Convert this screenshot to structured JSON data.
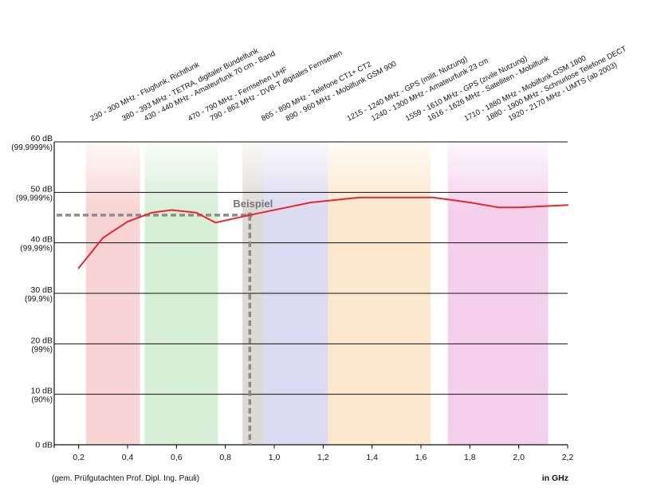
{
  "chart_data": {
    "type": "line",
    "x_unit_label": "in GHz",
    "source_note": "(gem. Prüfgutachten Prof. Dipl. Ing. Pauli)",
    "xlim": [
      0.1,
      2.2
    ],
    "ylim": [
      0,
      60
    ],
    "x_ticks": [
      "0,2",
      "0,4",
      "0,6",
      "0,8",
      "1,0",
      "1,2",
      "1,4",
      "1,6",
      "1,8",
      "2,0",
      "2,2"
    ],
    "x_tick_values": [
      0.2,
      0.4,
      0.6,
      0.8,
      1.0,
      1.2,
      1.4,
      1.6,
      1.8,
      2.0,
      2.2
    ],
    "y_ticks": [
      {
        "value": 0,
        "db": "0 dB",
        "pct": ""
      },
      {
        "value": 10,
        "db": "10 dB",
        "pct": "(90%)"
      },
      {
        "value": 20,
        "db": "20 dB",
        "pct": "(99%)"
      },
      {
        "value": 30,
        "db": "30 dB",
        "pct": "(99,9%)"
      },
      {
        "value": 40,
        "db": "40 dB",
        "pct": "(99,99%)"
      },
      {
        "value": 50,
        "db": "50 dB",
        "pct": "(99,999%)"
      },
      {
        "value": 60,
        "db": "60 dB",
        "pct": "(99,9999%)"
      }
    ],
    "series": [
      {
        "color": "#e8262b",
        "x": [
          0.2,
          0.3,
          0.4,
          0.5,
          0.58,
          0.68,
          0.76,
          0.9,
          1.15,
          1.35,
          1.55,
          1.65,
          1.8,
          1.92,
          2.0,
          2.2
        ],
        "y": [
          35,
          41,
          44.2,
          46,
          46.5,
          46,
          44,
          45.5,
          48,
          49,
          49,
          49,
          48,
          47,
          47,
          47.5
        ]
      }
    ],
    "bands": [
      {
        "from": 0.23,
        "to": 0.45,
        "color": "#f9d4d4"
      },
      {
        "from": 0.47,
        "to": 0.77,
        "color": "#d7eed7"
      },
      {
        "from": 0.87,
        "to": 0.96,
        "color": "#dcdad6"
      },
      {
        "from": 0.96,
        "to": 1.22,
        "color": "#dcdaf0"
      },
      {
        "from": 1.22,
        "to": 1.64,
        "color": "#fbe8cd"
      },
      {
        "from": 1.71,
        "to": 2.12,
        "color": "#f5d0ec"
      }
    ],
    "example": {
      "label": "Beispiel",
      "x": 0.9,
      "y": 45.5,
      "color": "#8c8c8c"
    },
    "band_labels": [
      {
        "text": "230 - 300 MHz - Flugfunk, Richtfunk",
        "at": 0.26
      },
      {
        "text": "380 - 393 MHz - TETRA, digitaler Bündelfunk",
        "at": 0.39
      },
      {
        "text": "430 - 440 MHz - Amateurfunk 70 cm - Band",
        "at": 0.48
      },
      {
        "text": "470 - 790 MHz - Fernsehen UHF",
        "at": 0.66
      },
      {
        "text": "790 - 862 MHz - DVB-T digitales Fernsehen",
        "at": 0.75
      },
      {
        "text": "865 - 890 MHz - Telefone CT1+ CT2",
        "at": 0.96
      },
      {
        "text": "890 - 960 MHz - Mobilfunk GSM 900",
        "at": 1.06
      },
      {
        "text": "1215 - 1240 MHz - GPS (milit. Nutzung)",
        "at": 1.31
      },
      {
        "text": "1240 - 1300 MHz - Amateurfunk 23 cm",
        "at": 1.41
      },
      {
        "text": "1559 - 1610 MHz - GPS (zivile Nutzung)",
        "at": 1.55
      },
      {
        "text": "1616 - 1626 MHz - Satelliten - Mobilfunk",
        "at": 1.64
      },
      {
        "text": "1710 - 1880 MHz - Mobilfunk GSM 1800",
        "at": 1.79
      },
      {
        "text": "1880 - 1900 MHz - Schnurlose Telefone DECT",
        "at": 1.88
      },
      {
        "text": "1920 - 2170 MHz - UMTS (ab 2003)",
        "at": 1.97
      }
    ]
  }
}
